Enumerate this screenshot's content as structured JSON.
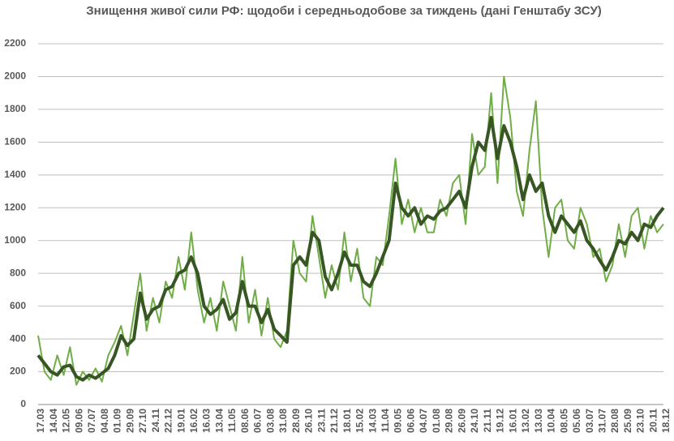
{
  "chart_data": {
    "type": "line",
    "title": "Знищення живої сили РФ: щодоби і середньодобове за тиждень (дані Генштабу ЗСУ)",
    "categories": [
      "17.03",
      null,
      "14.04",
      null,
      "12.05",
      null,
      "09.06",
      null,
      "07.07",
      null,
      "04.08",
      null,
      "01.09",
      null,
      "29.09",
      null,
      "27.10",
      null,
      "24.11",
      null,
      "22.12",
      null,
      "19.01",
      null,
      "16.02",
      null,
      "16.03",
      null,
      "13.04",
      null,
      "11.05",
      null,
      "08.06",
      null,
      "06.07",
      null,
      "03.08",
      null,
      "31.08",
      null,
      "28.09",
      null,
      "26.10",
      null,
      "23.11",
      null,
      "21.12",
      null,
      "18.01",
      null,
      "15.02",
      null,
      "14.03",
      null,
      "11.04",
      null,
      "09.05",
      null,
      "06.06",
      null,
      "04.07",
      null,
      "01.08",
      null,
      "29.08",
      null,
      "26.09",
      null,
      "24.10",
      null,
      "21.11",
      null,
      "19.12",
      null,
      "16.01",
      null,
      "13.02",
      null,
      "13.03",
      null,
      "10.04",
      null,
      "08.05",
      null,
      "05.06",
      null,
      "03.07",
      null,
      "31.07",
      null,
      "28.08",
      null,
      "25.09",
      null,
      "23.10",
      null,
      "20.11",
      null,
      "18.12"
    ],
    "series": [
      {
        "color": "#70ad47",
        "width": 2,
        "values": [
          420,
          200,
          150,
          300,
          180,
          350,
          120,
          200,
          150,
          220,
          140,
          300,
          380,
          480,
          300,
          550,
          800,
          450,
          650,
          500,
          750,
          650,
          900,
          700,
          1050,
          700,
          500,
          650,
          450,
          750,
          600,
          450,
          900,
          500,
          700,
          420,
          650,
          400,
          350,
          450,
          1000,
          800,
          750,
          1150,
          900,
          650,
          850,
          700,
          1050,
          750,
          950,
          650,
          600,
          900,
          850,
          1150,
          1500,
          1100,
          1250,
          1050,
          1200,
          1050,
          1050,
          1250,
          1150,
          1350,
          1400,
          1100,
          1650,
          1400,
          1450,
          1900,
          1350,
          2000,
          1750,
          1300,
          1150,
          1550,
          1850,
          1200,
          900,
          1200,
          1250,
          1000,
          950,
          1200,
          1100,
          900,
          950,
          750,
          850,
          1100,
          900,
          1150,
          1200,
          950,
          1150,
          1050,
          1100
        ]
      },
      {
        "color": "#375623",
        "width": 4,
        "values": [
          300,
          250,
          200,
          180,
          230,
          240,
          170,
          150,
          180,
          160,
          190,
          220,
          300,
          420,
          360,
          400,
          680,
          520,
          580,
          600,
          700,
          720,
          800,
          820,
          900,
          800,
          600,
          550,
          580,
          640,
          520,
          560,
          750,
          600,
          600,
          500,
          580,
          460,
          420,
          380,
          850,
          900,
          850,
          1050,
          1000,
          780,
          700,
          800,
          930,
          850,
          850,
          750,
          720,
          800,
          900,
          1000,
          1350,
          1200,
          1150,
          1200,
          1100,
          1150,
          1130,
          1180,
          1200,
          1250,
          1300,
          1200,
          1450,
          1600,
          1550,
          1750,
          1500,
          1700,
          1600,
          1450,
          1250,
          1400,
          1300,
          1350,
          1150,
          1050,
          1150,
          1100,
          1050,
          1120,
          1000,
          950,
          880,
          820,
          900,
          1000,
          980,
          1050,
          1000,
          1100,
          1080,
          1150,
          1200
        ]
      }
    ],
    "ylim": [
      0,
      2200
    ],
    "yticks": [
      0,
      200,
      400,
      600,
      800,
      1000,
      1200,
      1400,
      1600,
      1800,
      2000,
      2200
    ],
    "grid": true
  }
}
